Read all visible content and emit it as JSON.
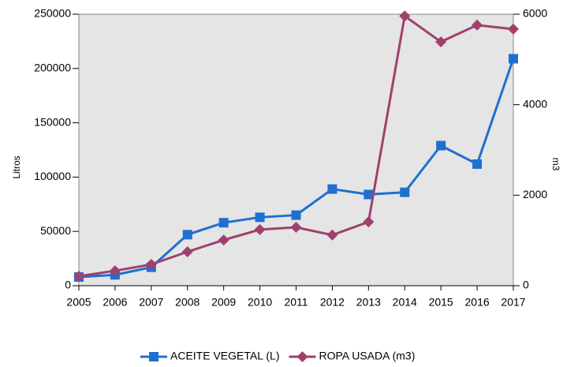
{
  "chart_data": {
    "type": "line",
    "categories": [
      "2005",
      "2006",
      "2007",
      "2008",
      "2009",
      "2010",
      "2011",
      "2012",
      "2013",
      "2014",
      "2015",
      "2016",
      "2017"
    ],
    "ylabel": "Litros",
    "y2label": "m3",
    "ylim": [
      0,
      250000
    ],
    "yticks": [
      0,
      50000,
      100000,
      150000,
      200000,
      250000
    ],
    "y2lim": [
      0,
      6000
    ],
    "y2ticks": [
      0,
      2000,
      4000,
      6000
    ],
    "series": [
      {
        "name": "ACEITE VEGETAL (L)",
        "color": "#1f6fd0",
        "marker": "square",
        "values": [
          8000,
          10000,
          17000,
          47000,
          58000,
          63000,
          65000,
          89000,
          84000,
          86000,
          129000,
          112000,
          209000
        ]
      },
      {
        "name": "ROPA USADA (m3)",
        "color": "#a0406e",
        "marker": "diamond",
        "axis": "y2",
        "values": [
          210,
          330,
          470,
          750,
          1010,
          1240,
          1290,
          1120,
          1410,
          5960,
          5390,
          5760,
          5670
        ]
      }
    ]
  }
}
